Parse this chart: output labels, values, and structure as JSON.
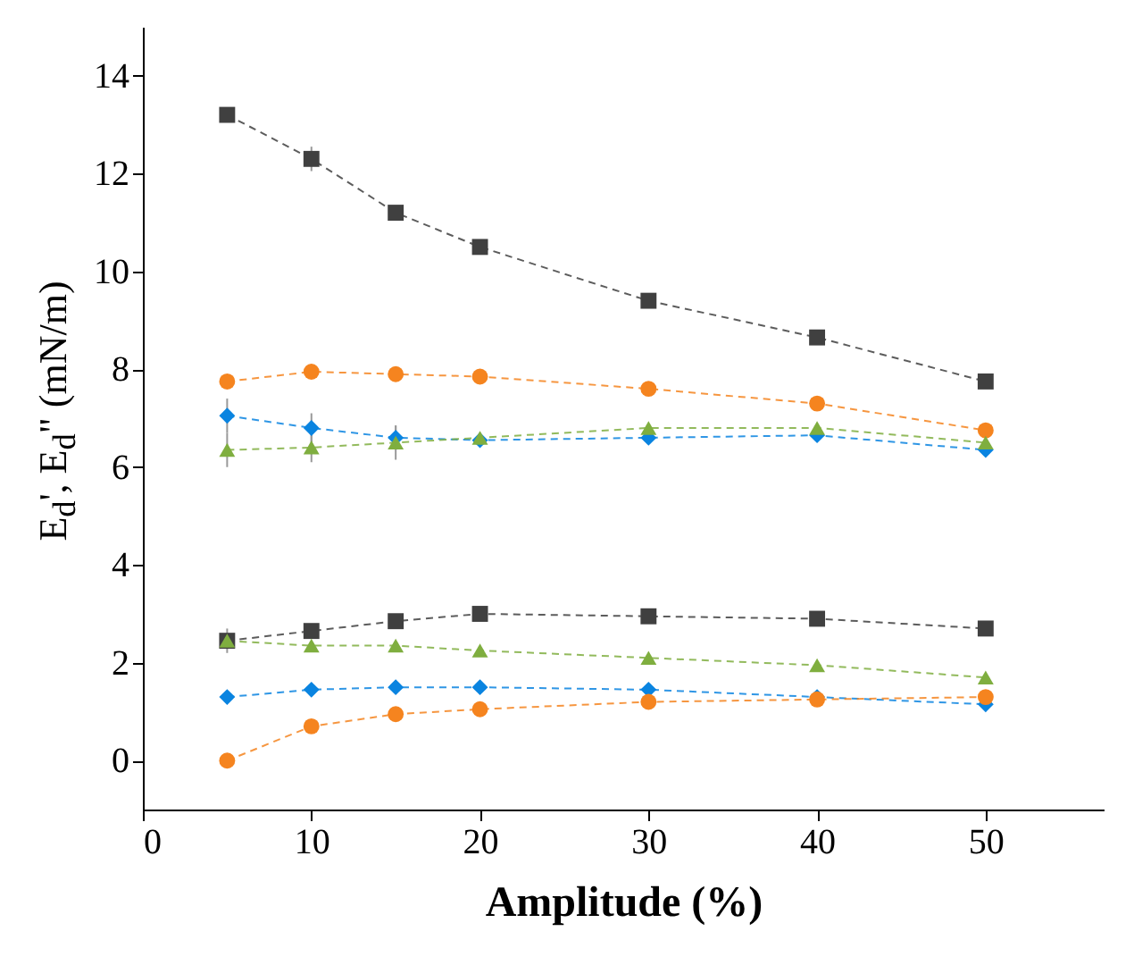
{
  "chart_data": {
    "type": "line",
    "xlabel": "Amplitude (%)",
    "ylabel": "E$_{d}$', E$_{d}$\" (mN/m)",
    "x": [
      5,
      10,
      15,
      20,
      30,
      40,
      50
    ],
    "xlim": [
      0,
      57
    ],
    "xticks": [
      0,
      10,
      20,
      30,
      40,
      50
    ],
    "ylim": [
      -1,
      15
    ],
    "yticks": [
      0,
      2,
      4,
      6,
      8,
      10,
      12,
      14
    ],
    "grid": false,
    "legend": false,
    "line_style": "dashed",
    "series": [
      {
        "color": "#404040",
        "marker": "square",
        "values": [
          13.2,
          12.3,
          11.2,
          10.5,
          9.4,
          8.65,
          7.75
        ],
        "errors": [
          null,
          0.25,
          null,
          null,
          null,
          null,
          null
        ]
      },
      {
        "color": "#f5841f",
        "marker": "circle",
        "values": [
          7.75,
          7.95,
          7.9,
          7.85,
          7.6,
          7.3,
          6.75
        ]
      },
      {
        "color": "#0a84e0",
        "marker": "diamond",
        "values": [
          7.05,
          6.8,
          6.6,
          6.55,
          6.6,
          6.65,
          6.35
        ],
        "errors": [
          0.35,
          0.3,
          0.25,
          null,
          null,
          null,
          null
        ]
      },
      {
        "color": "#7fae3f",
        "marker": "triangle",
        "values": [
          6.35,
          6.4,
          6.5,
          6.6,
          6.8,
          6.8,
          6.5
        ],
        "errors": [
          0.35,
          0.3,
          0.35,
          null,
          null,
          null,
          null
        ]
      },
      {
        "color": "#404040",
        "marker": "square",
        "values": [
          2.45,
          2.65,
          2.85,
          3.0,
          2.95,
          2.9,
          2.7
        ],
        "errors": [
          0.25,
          null,
          null,
          null,
          null,
          null,
          null
        ]
      },
      {
        "color": "#7fae3f",
        "marker": "triangle",
        "values": [
          2.45,
          2.35,
          2.35,
          2.25,
          2.1,
          1.95,
          1.7
        ]
      },
      {
        "color": "#0a84e0",
        "marker": "diamond",
        "values": [
          1.3,
          1.45,
          1.5,
          1.5,
          1.45,
          1.3,
          1.15
        ]
      },
      {
        "color": "#f5841f",
        "marker": "circle",
        "values": [
          0.0,
          0.7,
          0.95,
          1.05,
          1.2,
          1.25,
          1.3
        ]
      }
    ]
  }
}
